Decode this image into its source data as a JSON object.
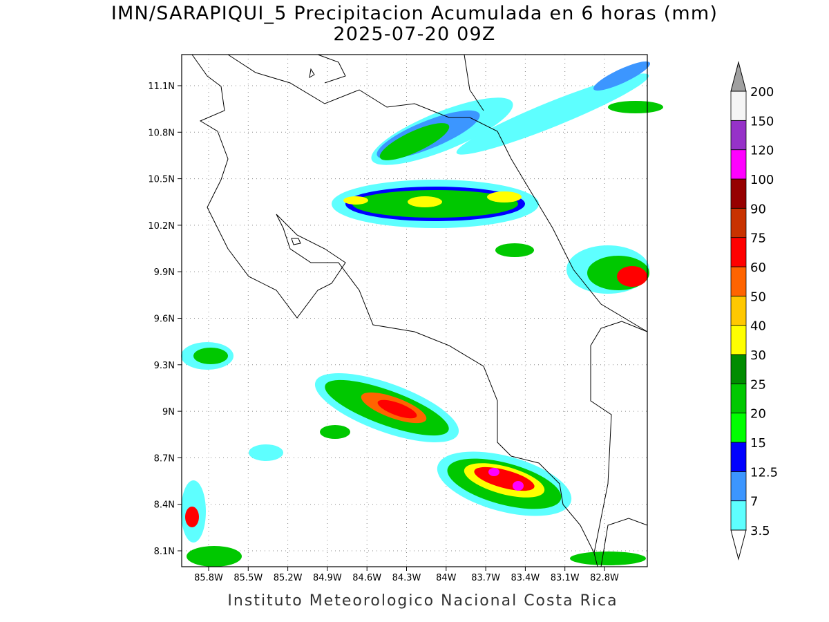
{
  "map": {
    "title": "IMN/SARAPIQUI_5 Precipitacion Acumulada en 6 horas (mm)",
    "subtitle": "2025-07-20 09Z",
    "footer": "Instituto Meteorologico Nacional Costa Rica",
    "lat_ticks": [
      "8.1N",
      "8.4N",
      "8.7N",
      "9N",
      "9.3N",
      "9.6N",
      "9.9N",
      "10.2N",
      "10.5N",
      "10.8N",
      "11.1N"
    ],
    "lon_ticks": [
      "85.8W",
      "85.5W",
      "85.2W",
      "84.9W",
      "84.6W",
      "84.3W",
      "84W",
      "83.7W",
      "83.4W",
      "83.1W",
      "82.8W"
    ],
    "colorbar": {
      "levels": [
        3.5,
        7,
        12.5,
        15,
        20,
        25,
        30,
        40,
        50,
        60,
        75,
        90,
        100,
        120,
        150,
        200
      ],
      "colors": [
        "#5effff",
        "#3c96ff",
        "#0000ff",
        "#00ff00",
        "#00c800",
        "#008c00",
        "#ffff00",
        "#ffc800",
        "#ff6400",
        "#ff0000",
        "#c83200",
        "#960000",
        "#ff00ff",
        "#9632c8",
        "#f5f5f5"
      ],
      "over_color": "#a0a0a0",
      "under_color": "#ffffff"
    }
  }
}
